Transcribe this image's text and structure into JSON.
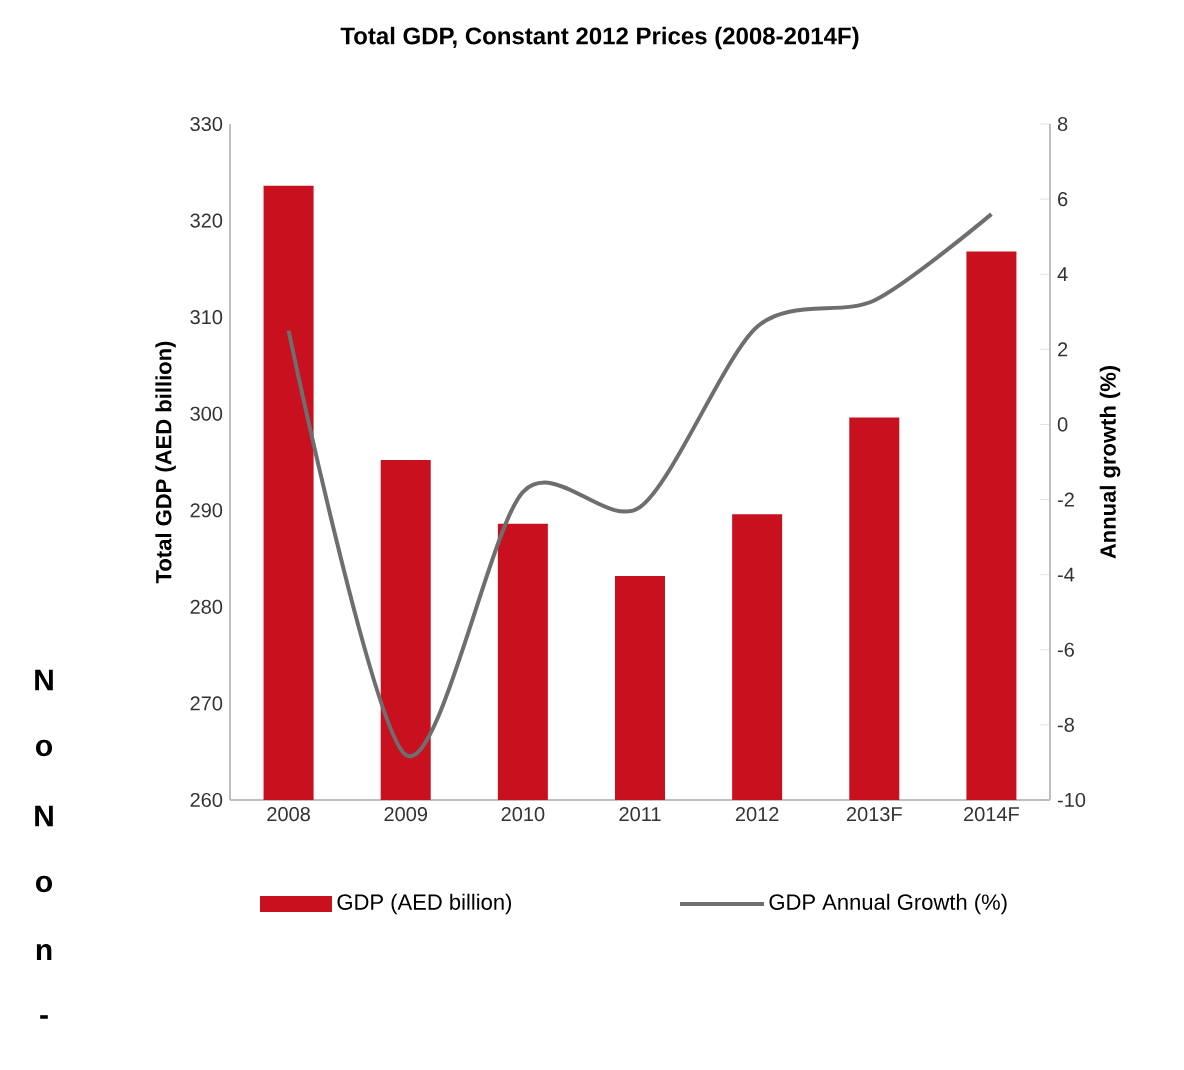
{
  "chart_data": {
    "type": "bar",
    "title": "Total GDP, Constant 2012 Prices (2008-2014F)",
    "categories": [
      "2008",
      "2009",
      "2010",
      "2011",
      "2012",
      "2013F",
      "2014F"
    ],
    "series": [
      {
        "name": "GDP (AED billion)",
        "color": "#c8101e",
        "values": [
          323.6,
          295.2,
          288.6,
          283.2,
          289.6,
          299.6,
          316.8
        ]
      },
      {
        "name": "GDP Annual Growth (%)",
        "type": "line",
        "axis": "y2",
        "color": "#6e6e6e",
        "values": [
          2.5,
          -8.8,
          -1.8,
          -2.2,
          2.6,
          3.3,
          5.6
        ]
      }
    ],
    "ylabel": "Total GDP (AED billion)",
    "y2label": "Annual growth (%)",
    "ylim": [
      260,
      330
    ],
    "yticks": [
      260,
      270,
      280,
      290,
      300,
      310,
      320,
      330
    ],
    "y2lim": [
      -10,
      8
    ],
    "y2ticks": [
      -10,
      -8,
      -6,
      -4,
      -2,
      0,
      2,
      4,
      6,
      8
    ],
    "legend": "bottom",
    "grid": false,
    "marker": "none",
    "annotations": [
      "N",
      "o",
      "N",
      "o",
      "n",
      "-"
    ]
  }
}
